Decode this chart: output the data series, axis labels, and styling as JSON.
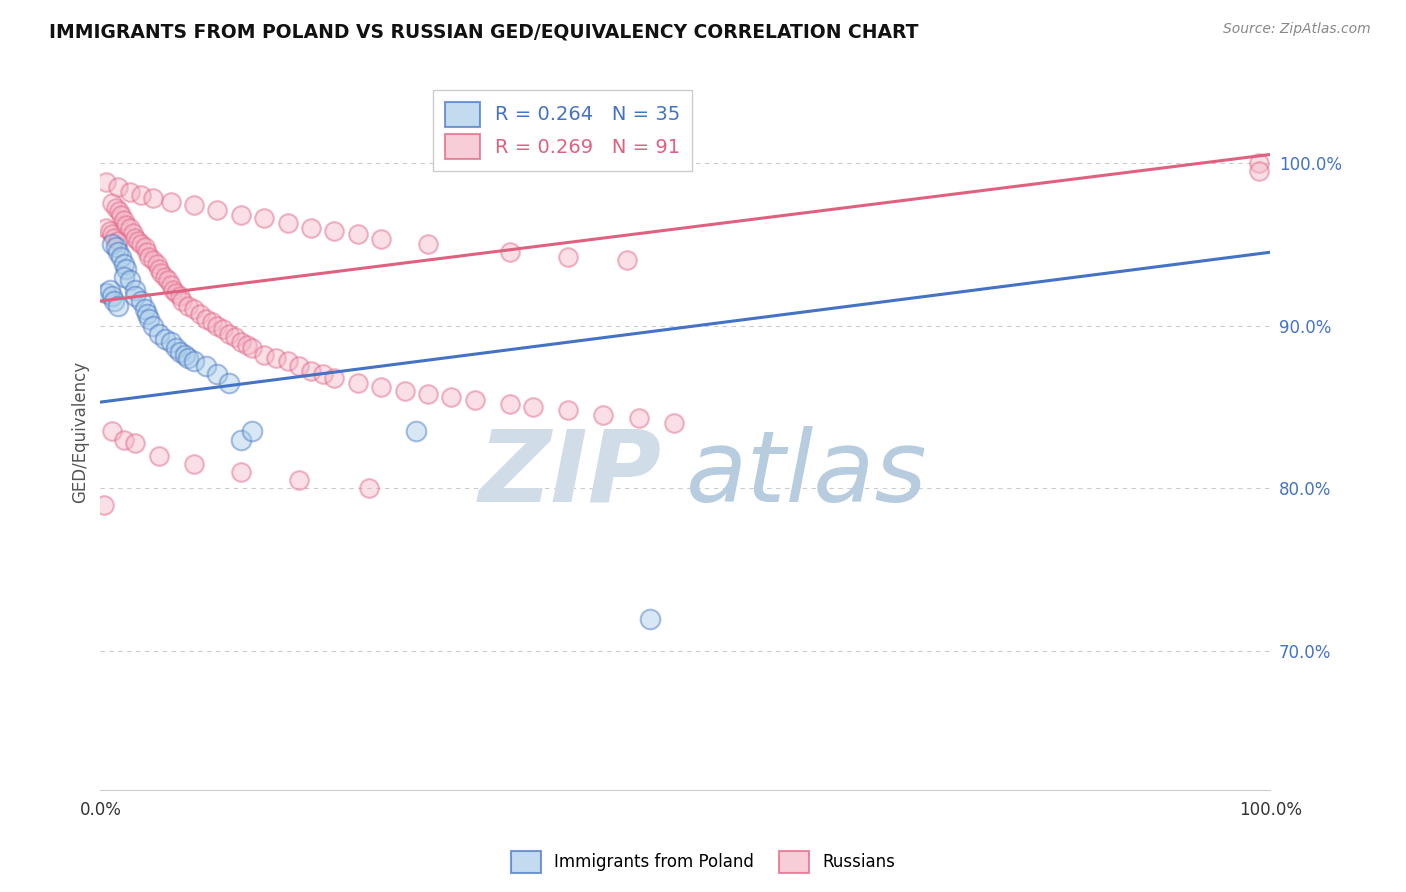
{
  "title": "IMMIGRANTS FROM POLAND VS RUSSIAN GED/EQUIVALENCY CORRELATION CHART",
  "source": "Source: ZipAtlas.com",
  "ylabel": "GED/Equivalency",
  "ytick_labels": [
    "100.0%",
    "90.0%",
    "80.0%",
    "70.0%"
  ],
  "ytick_values": [
    1.0,
    0.9,
    0.8,
    0.7
  ],
  "xlim": [
    0.0,
    1.0
  ],
  "ylim": [
    0.615,
    1.055
  ],
  "legend_label_blue_parts": {
    "R": "0.264",
    "N": "35"
  },
  "legend_label_pink_parts": {
    "R": "0.269",
    "N": "91"
  },
  "blue_color": "#a8cce8",
  "pink_color": "#f4b8c8",
  "trendline_blue_color": "#4472c4",
  "trendline_pink_color": "#e06080",
  "watermark_zip": "ZIP",
  "watermark_atlas": "atlas",
  "watermark_color_zip": "#d0dce8",
  "watermark_color_atlas": "#b8cce0",
  "bottom_legend_blue": "Immigrants from Poland",
  "bottom_legend_pink": "Russians",
  "grid_color": "#cccccc",
  "poland_trendline_x": [
    0.0,
    1.0
  ],
  "poland_trendline_y": [
    0.853,
    0.945
  ],
  "russia_trendline_x": [
    0.0,
    1.0
  ],
  "russia_trendline_y": [
    0.915,
    1.005
  ],
  "marker_size_poland": 200,
  "marker_size_russia": 180,
  "marker_alpha": 0.45,
  "marker_lw": 1.5,
  "poland_x": [
    0.005,
    0.008,
    0.01,
    0.012,
    0.015,
    0.01,
    0.013,
    0.015,
    0.018,
    0.02,
    0.022,
    0.02,
    0.025,
    0.03,
    0.03,
    0.035,
    0.038,
    0.04,
    0.042,
    0.045,
    0.05,
    0.055,
    0.06,
    0.065,
    0.068,
    0.072,
    0.075,
    0.08,
    0.09,
    0.1,
    0.11,
    0.12,
    0.13,
    0.27,
    0.47
  ],
  "poland_y": [
    0.92,
    0.922,
    0.918,
    0.915,
    0.912,
    0.95,
    0.948,
    0.945,
    0.942,
    0.938,
    0.935,
    0.93,
    0.928,
    0.922,
    0.918,
    0.915,
    0.91,
    0.907,
    0.904,
    0.9,
    0.895,
    0.892,
    0.89,
    0.886,
    0.884,
    0.882,
    0.88,
    0.878,
    0.875,
    0.87,
    0.865,
    0.83,
    0.835,
    0.835,
    0.72
  ],
  "russia_x": [
    0.005,
    0.008,
    0.01,
    0.012,
    0.015,
    0.01,
    0.013,
    0.016,
    0.018,
    0.02,
    0.022,
    0.025,
    0.028,
    0.03,
    0.032,
    0.035,
    0.038,
    0.04,
    0.042,
    0.045,
    0.048,
    0.05,
    0.052,
    0.055,
    0.058,
    0.06,
    0.062,
    0.065,
    0.068,
    0.07,
    0.075,
    0.08,
    0.085,
    0.09,
    0.095,
    0.1,
    0.105,
    0.11,
    0.115,
    0.12,
    0.125,
    0.13,
    0.14,
    0.15,
    0.16,
    0.17,
    0.18,
    0.19,
    0.2,
    0.22,
    0.24,
    0.26,
    0.28,
    0.3,
    0.32,
    0.35,
    0.37,
    0.4,
    0.43,
    0.46,
    0.49,
    0.005,
    0.015,
    0.025,
    0.035,
    0.045,
    0.06,
    0.08,
    0.1,
    0.12,
    0.14,
    0.16,
    0.18,
    0.2,
    0.22,
    0.24,
    0.28,
    0.35,
    0.4,
    0.45,
    0.01,
    0.02,
    0.03,
    0.05,
    0.08,
    0.12,
    0.17,
    0.23,
    0.99,
    0.99,
    0.003
  ],
  "russia_y": [
    0.96,
    0.958,
    0.956,
    0.954,
    0.952,
    0.975,
    0.972,
    0.97,
    0.968,
    0.965,
    0.962,
    0.96,
    0.957,
    0.954,
    0.952,
    0.95,
    0.948,
    0.945,
    0.942,
    0.94,
    0.938,
    0.935,
    0.932,
    0.93,
    0.928,
    0.925,
    0.922,
    0.92,
    0.918,
    0.915,
    0.912,
    0.91,
    0.907,
    0.904,
    0.902,
    0.9,
    0.898,
    0.895,
    0.893,
    0.89,
    0.888,
    0.886,
    0.882,
    0.88,
    0.878,
    0.875,
    0.872,
    0.87,
    0.868,
    0.865,
    0.862,
    0.86,
    0.858,
    0.856,
    0.854,
    0.852,
    0.85,
    0.848,
    0.845,
    0.843,
    0.84,
    0.988,
    0.985,
    0.982,
    0.98,
    0.978,
    0.976,
    0.974,
    0.971,
    0.968,
    0.966,
    0.963,
    0.96,
    0.958,
    0.956,
    0.953,
    0.95,
    0.945,
    0.942,
    0.94,
    0.835,
    0.83,
    0.828,
    0.82,
    0.815,
    0.81,
    0.805,
    0.8,
    1.0,
    0.995,
    0.79
  ]
}
